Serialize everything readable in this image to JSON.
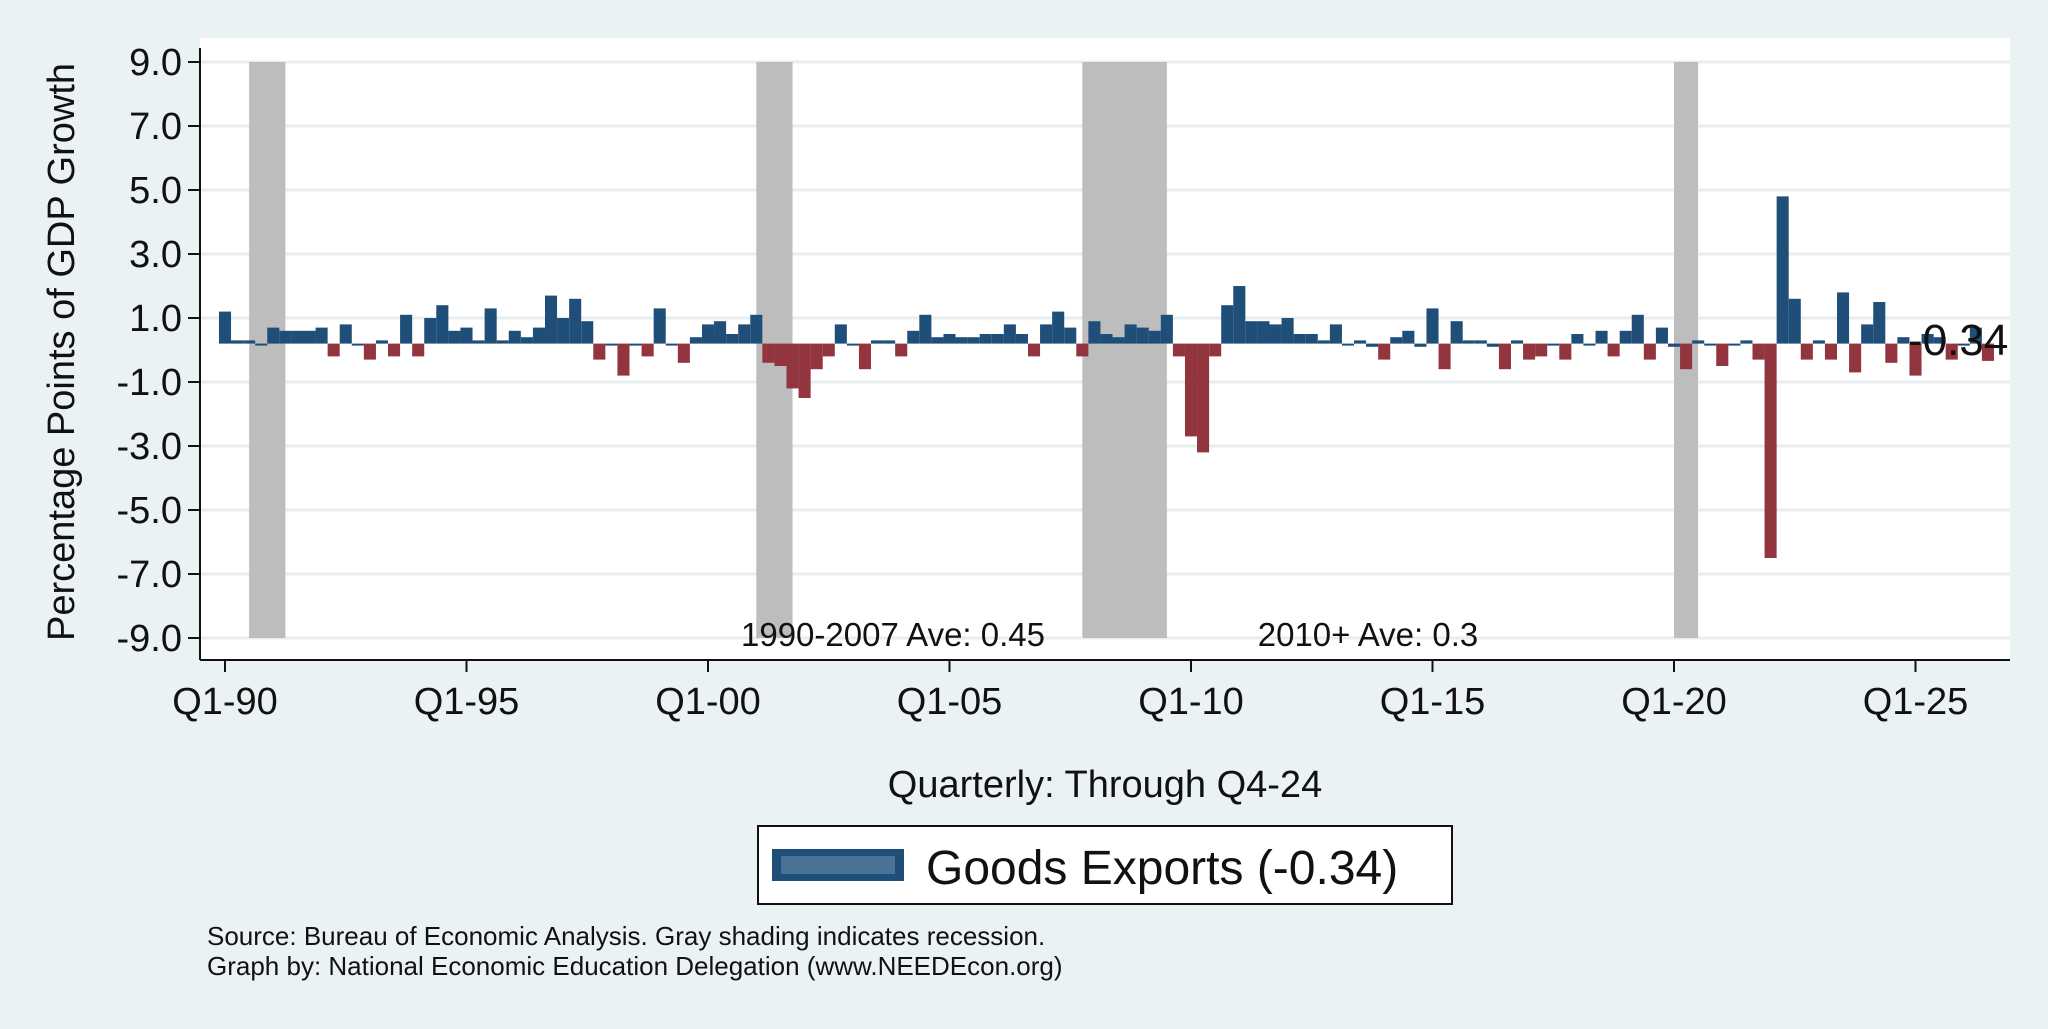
{
  "chart_data": {
    "type": "bar",
    "ylabel": "Percentage Points of GDP Growth",
    "xlabel": "Quarterly: Through Q4-24",
    "ylim": [
      -9.0,
      9.0
    ],
    "yticks": [
      "9.0",
      "7.0",
      "5.0",
      "3.0",
      "1.0",
      "-1.0",
      "-3.0",
      "-5.0",
      "-7.0",
      "-9.0"
    ],
    "ytick_values": [
      9,
      7,
      5,
      3,
      1,
      -1,
      -3,
      -5,
      -7,
      -9
    ],
    "xticks": [
      "Q1-90",
      "Q1-95",
      "Q1-00",
      "Q1-05",
      "Q1-10",
      "Q1-15",
      "Q1-20",
      "Q1-25"
    ],
    "xtick_years": [
      1990,
      1995,
      2000,
      2005,
      2010,
      2015,
      2020,
      2025
    ],
    "start_year": 1990,
    "colors": {
      "positive": "#1f4e79",
      "negative": "#93353e",
      "recession": "#bdbdbd"
    },
    "recessions": [
      [
        1990.5,
        1991.25
      ],
      [
        2001.0,
        2001.75
      ],
      [
        2007.75,
        2009.5
      ],
      [
        2020.0,
        2020.5
      ]
    ],
    "values": [
      1.2,
      0.3,
      0.3,
      0.2,
      0.7,
      0.6,
      0.6,
      0.6,
      0.7,
      -0.2,
      0.8,
      0.2,
      -0.3,
      0.3,
      -0.2,
      1.1,
      -0.2,
      1.0,
      1.4,
      0.6,
      0.7,
      0.3,
      1.3,
      0.3,
      0.6,
      0.4,
      0.7,
      1.7,
      1.0,
      1.6,
      0.9,
      -0.3,
      0.2,
      -0.8,
      0.2,
      -0.2,
      1.3,
      0.2,
      -0.4,
      0.4,
      0.8,
      0.9,
      0.5,
      0.8,
      1.1,
      -0.4,
      -0.5,
      -1.2,
      -1.5,
      -0.6,
      -0.2,
      0.8,
      0.2,
      -0.6,
      0.3,
      0.3,
      -0.2,
      0.6,
      1.1,
      0.4,
      0.5,
      0.4,
      0.4,
      0.5,
      0.5,
      0.8,
      0.5,
      -0.2,
      0.8,
      1.2,
      0.7,
      -0.2,
      0.9,
      0.5,
      0.4,
      0.8,
      0.7,
      0.6,
      1.1,
      -0.2,
      -2.7,
      -3.2,
      -0.2,
      1.4,
      2.0,
      0.9,
      0.9,
      0.8,
      1.0,
      0.5,
      0.5,
      0.3,
      0.8,
      0.2,
      0.3,
      0.1,
      -0.3,
      0.4,
      0.6,
      0.1,
      1.3,
      -0.6,
      0.9,
      0.3,
      0.3,
      0.1,
      -0.6,
      0.3,
      -0.3,
      -0.2,
      0.2,
      -0.3,
      0.5,
      0.2,
      0.6,
      -0.2,
      0.6,
      1.1,
      -0.3,
      0.7,
      0.1,
      -0.6,
      0.3,
      0.2,
      -0.5,
      0.2,
      0.3,
      -0.3,
      -6.5,
      4.8,
      1.6,
      -0.3,
      0.3,
      -0.3,
      1.8,
      -0.7,
      0.8,
      1.5,
      -0.4,
      0.4,
      -0.8,
      0.5,
      0.4,
      -0.3,
      0.2,
      0.7,
      -0.34
    ],
    "annotations": [
      "1990-2007 Ave: 0.45",
      "2010+ Ave: 0.3"
    ],
    "end_label": "-0.34",
    "legend": "Goods Exports (-0.34)"
  },
  "source_lines": [
    "Source: Bureau of Economic Analysis. Gray shading indicates recession.",
    "Graph by: National Economic Education Delegation (www.NEEDEcon.org)"
  ]
}
